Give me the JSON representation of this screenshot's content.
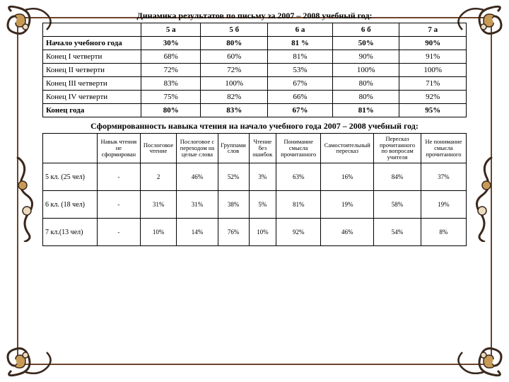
{
  "frame": {
    "line_color": "#6b442c",
    "ornament_colors": {
      "dark": "#3a281d",
      "gold": "#c79a56",
      "cream": "#eadcbd"
    }
  },
  "title1": "Динамика результатов по письму за 2007 – 2008 учебный год:",
  "table1": {
    "columns": [
      "",
      "5 а",
      "5 б",
      "6 а",
      "6 б",
      "7 а"
    ],
    "rows": [
      {
        "label": "Начало учебного года",
        "vals": [
          "30%",
          "80%",
          "81 %",
          "50%",
          "90%"
        ],
        "bold": true
      },
      {
        "label": "Конец I четверти",
        "vals": [
          "68%",
          "60%",
          "81%",
          "90%",
          "91%"
        ]
      },
      {
        "label": "Конец II четверти",
        "vals": [
          "72%",
          "72%",
          "53%",
          "100%",
          "100%"
        ]
      },
      {
        "label": "Конец III четверти",
        "vals": [
          "83%",
          "100%",
          "67%",
          "80%",
          "71%"
        ]
      },
      {
        "label": "Конец IV четверти",
        "vals": [
          "75%",
          "82%",
          "66%",
          "80%",
          "92%"
        ]
      },
      {
        "label": "Конец года",
        "vals": [
          "80%",
          "83%",
          "67%",
          "81%",
          "95%"
        ],
        "bold": true
      }
    ],
    "col1_width": 130
  },
  "title2": "Сформированность навыка чтения на начало учебного года 2007 – 2008 учебный год:",
  "table2": {
    "columns": [
      "",
      "Навык чтения не сформирован",
      "Послоговое чтение",
      "Послоговое с переходом на целые слова",
      "Группами слов",
      "Чтение без ошибок",
      "Понимание смысла прочитанного",
      "Самостоятельный пересказ",
      "Пересказ прочитанного по вопросам учителя",
      "Не понимание смысла прочитанного"
    ],
    "rows": [
      {
        "label": "5 кл. (25 чел)",
        "vals": [
          "-",
          "2",
          "46%",
          "52%",
          "3%",
          "63%",
          "16%",
          "84%",
          "37%"
        ]
      },
      {
        "label": "6 кл. (18 чел)",
        "vals": [
          "-",
          "31%",
          "31%",
          "38%",
          "5%",
          "81%",
          "19%",
          "58%",
          "19%"
        ]
      },
      {
        "label": "7 кл.(13 чел)",
        "vals": [
          "-",
          "10%",
          "14%",
          "76%",
          "10%",
          "92%",
          "46%",
          "54%",
          "8%"
        ]
      }
    ],
    "col1_width": 70
  }
}
